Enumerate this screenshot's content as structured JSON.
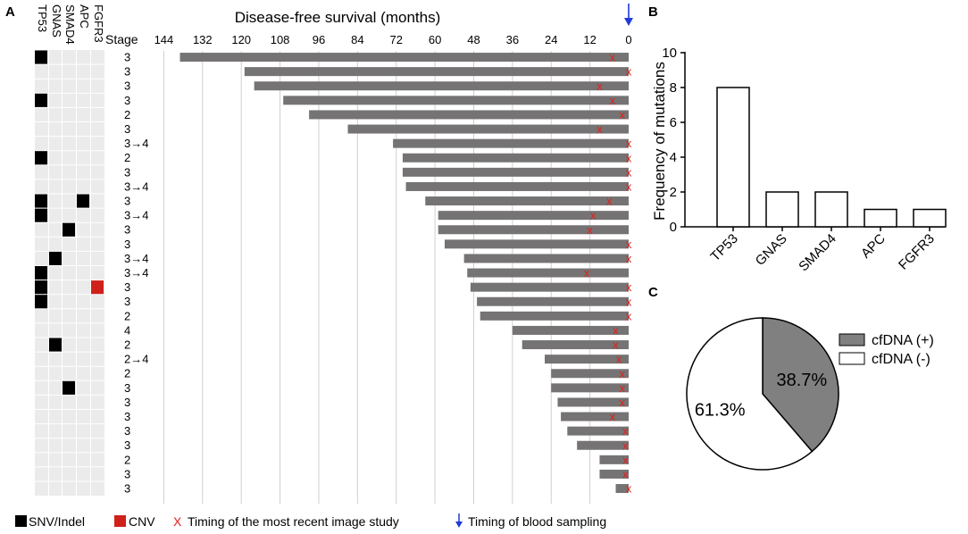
{
  "panels": {
    "a": "A",
    "b": "B",
    "c": "C"
  },
  "colors": {
    "bar": "#757373",
    "mutation_snv": "#000000",
    "mutation_cnv": "#d0201a",
    "cell_empty": "#ebebeb",
    "x_marker": "#e0201c",
    "blood_arrow": "#1f3bd6",
    "pie_positive": "#808080",
    "pie_negative": "#ffffff"
  },
  "chart_data": [
    {
      "id": "panel-a-heatmap",
      "type": "heatmap",
      "genes": [
        "TP53",
        "GNAS",
        "SMAD4",
        "APC",
        "FGFR3"
      ],
      "stage_header": "Stage",
      "stages": [
        "3",
        "3",
        "3",
        "3",
        "2",
        "3",
        "3→4",
        "2",
        "3",
        "3→4",
        "3",
        "3→4",
        "3",
        "3",
        "3→4",
        "3→4",
        "3",
        "3",
        "2",
        "4",
        "2",
        "2→4",
        "2",
        "3",
        "3",
        "3",
        "3",
        "3",
        "2",
        "3",
        "3"
      ],
      "mutations": [
        {
          "row": 1,
          "gene": "TP53",
          "type": "SNV/Indel"
        },
        {
          "row": 4,
          "gene": "TP53",
          "type": "SNV/Indel"
        },
        {
          "row": 8,
          "gene": "TP53",
          "type": "SNV/Indel"
        },
        {
          "row": 11,
          "gene": "TP53",
          "type": "SNV/Indel"
        },
        {
          "row": 11,
          "gene": "APC",
          "type": "SNV/Indel"
        },
        {
          "row": 12,
          "gene": "TP53",
          "type": "SNV/Indel"
        },
        {
          "row": 13,
          "gene": "SMAD4",
          "type": "SNV/Indel"
        },
        {
          "row": 15,
          "gene": "GNAS",
          "type": "SNV/Indel"
        },
        {
          "row": 16,
          "gene": "TP53",
          "type": "SNV/Indel"
        },
        {
          "row": 17,
          "gene": "TP53",
          "type": "SNV/Indel"
        },
        {
          "row": 17,
          "gene": "FGFR3",
          "type": "CNV"
        },
        {
          "row": 18,
          "gene": "TP53",
          "type": "SNV/Indel"
        },
        {
          "row": 21,
          "gene": "GNAS",
          "type": "SNV/Indel"
        },
        {
          "row": 24,
          "gene": "SMAD4",
          "type": "SNV/Indel"
        }
      ]
    },
    {
      "id": "panel-a-survival",
      "type": "bar",
      "orientation": "horizontal",
      "title": "Disease-free survival (months)",
      "xlim": [
        0,
        145
      ],
      "xticks": [
        144,
        132,
        120,
        108,
        96,
        84,
        72,
        60,
        48,
        36,
        24,
        12,
        0
      ],
      "values": [
        139,
        119,
        116,
        107,
        99,
        87,
        73,
        70,
        70,
        69,
        63,
        59,
        59,
        57,
        51,
        50,
        49,
        47,
        46,
        36,
        33,
        26,
        24,
        24,
        22,
        21,
        19,
        16,
        9,
        9,
        4
      ],
      "image_study_months": [
        5,
        0,
        9,
        5,
        2,
        9,
        0,
        0,
        0,
        0,
        6,
        11,
        12,
        0,
        0,
        13,
        0,
        0,
        0,
        4,
        4,
        3,
        2,
        2,
        2,
        5,
        1,
        1,
        1,
        1,
        0
      ]
    },
    {
      "id": "panel-b",
      "type": "bar",
      "categories": [
        "TP53",
        "GNAS",
        "SMAD4",
        "APC",
        "FGFR3"
      ],
      "values": [
        8,
        2,
        2,
        1,
        1
      ],
      "ylabel": "Frequency of mutations",
      "ylim": [
        0,
        10
      ],
      "yticks": [
        0,
        2,
        4,
        6,
        8,
        10
      ]
    },
    {
      "id": "panel-c",
      "type": "pie",
      "labels": [
        "cfDNA (+)",
        "cfDNA (-)"
      ],
      "values": [
        38.7,
        61.3
      ],
      "value_labels": [
        "38.7%",
        "61.3%"
      ]
    }
  ],
  "legend_a": {
    "snv": "SNV/Indel",
    "cnv": "CNV",
    "x_marker_symbol": "X",
    "image_study": "Timing of the most recent image study",
    "blood_sampling": "Timing of blood sampling"
  }
}
